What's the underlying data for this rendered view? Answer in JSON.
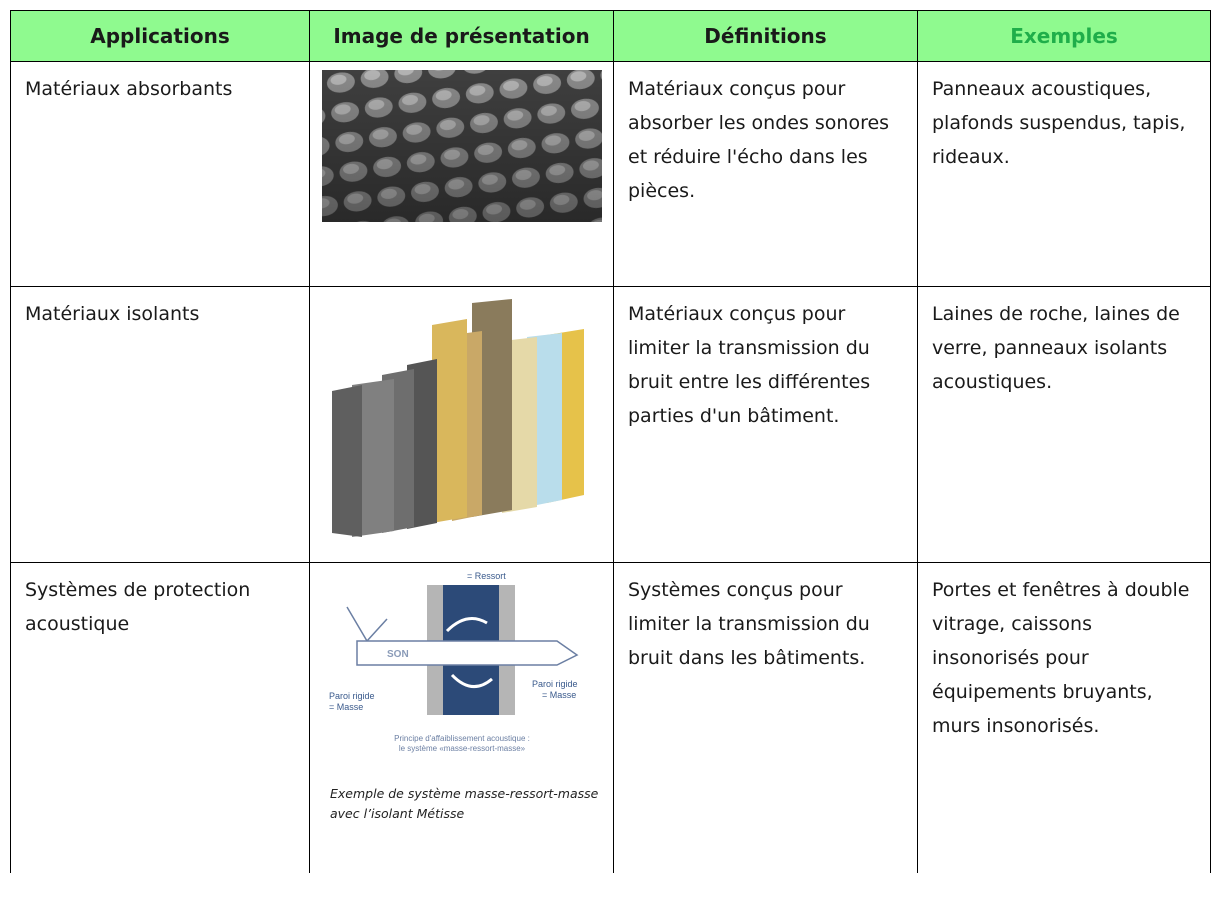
{
  "table": {
    "header": [
      "Applications",
      "Image de présentation",
      "Définitions",
      "Exemples"
    ],
    "rows": [
      {
        "application": "Matériaux absorbants",
        "definition": "Matériaux conçus pour absorber les ondes sonores et réduire l'écho dans les pièces.",
        "examples": "Panneaux acoustiques, plafonds suspendus, tapis, rideaux."
      },
      {
        "application": "Matériaux isolants",
        "definition": "Matériaux conçus pour limiter la transmission du bruit entre les différentes parties d'un bâtiment.",
        "examples": "Laines de roche, laines de verre, panneaux isolants acoustiques."
      },
      {
        "application": "Systèmes de protection acoustique",
        "definition": "Systèmes conçus pour limiter la transmission du bruit dans les bâtiments.",
        "examples": "Portes et fenêtres à double vitrage, caissons insonorisés pour équipements bruyants, murs insonorisés."
      }
    ]
  },
  "diagram": {
    "ressort": "= Ressort",
    "son": "SON",
    "paroi_left": "Paroi rigide",
    "masse_left": "= Masse",
    "paroi_right": "Paroi rigide",
    "masse_right": "= Masse",
    "principle_line1": "Principe d'affaiblissement acoustique :",
    "principle_line2": "le système «masse-ressort-masse»",
    "caption": "Exemple de système masse-ressort-masse avec l’isolant Métisse"
  }
}
